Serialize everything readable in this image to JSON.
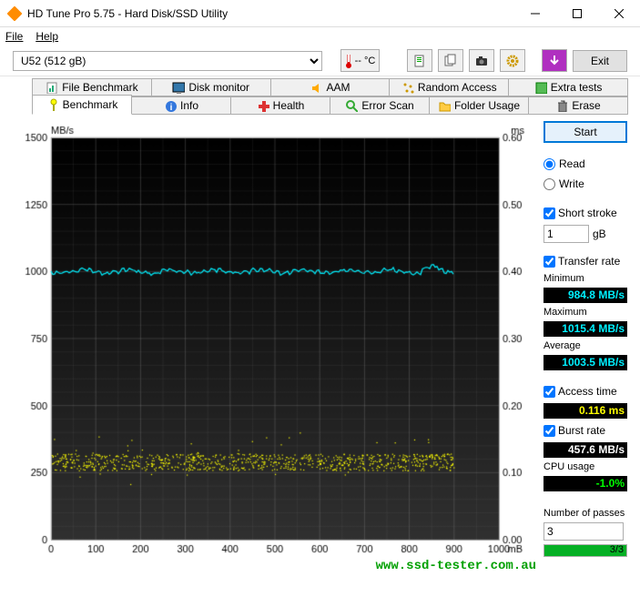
{
  "window": {
    "title": "HD Tune Pro 5.75 - Hard Disk/SSD Utility"
  },
  "menu": {
    "file": "File",
    "help": "Help"
  },
  "toolbar": {
    "device": "U52 (512 gB)",
    "temp_value": "-- °C",
    "exit": "Exit"
  },
  "tabs_top": [
    "File Benchmark",
    "Disk monitor",
    "AAM",
    "Random Access",
    "Extra tests"
  ],
  "tabs_bottom": [
    "Benchmark",
    "Info",
    "Health",
    "Error Scan",
    "Folder Usage",
    "Erase"
  ],
  "active_tab": "Benchmark",
  "chart": {
    "y_label": "MB/s",
    "y2_label": "ms",
    "x_label": "mB",
    "y_ticks": [
      0,
      250,
      500,
      750,
      1000,
      1250,
      1500
    ],
    "y2_ticks": [
      "0.00",
      "0.10",
      "0.20",
      "0.30",
      "0.40",
      "0.50",
      "0.60"
    ],
    "x_ticks": [
      0,
      100,
      200,
      300,
      400,
      500,
      600,
      700,
      800,
      900,
      1000
    ],
    "bg_top": "#000000",
    "bg_bottom": "#303030",
    "grid_color": "#808080",
    "transfer_line_color": "#00f0ff",
    "access_point_color": "#ffff00",
    "transfer_y_approx": 1000,
    "access_y_approx_ms": 0.12,
    "x_max": 1000
  },
  "side": {
    "start": "Start",
    "read": "Read",
    "write": "Write",
    "read_selected": true,
    "short_stroke": "Short stroke",
    "short_stroke_checked": true,
    "short_stroke_val": "1",
    "short_stroke_unit": "gB",
    "transfer_rate": "Transfer rate",
    "transfer_checked": true,
    "minimum": "Minimum",
    "min_val": "984.8 MB/s",
    "maximum": "Maximum",
    "max_val": "1015.4 MB/s",
    "average": "Average",
    "avg_val": "1003.5 MB/s",
    "access_time": "Access time",
    "access_checked": true,
    "access_val": "0.116 ms",
    "burst_rate": "Burst rate",
    "burst_checked": true,
    "burst_val": "457.6 MB/s",
    "cpu_usage": "CPU usage",
    "cpu_val": "-1.0%",
    "num_passes": "Number of passes",
    "passes_val": "3",
    "progress_text": "3/3",
    "progress_pct": 100
  },
  "watermark": "www.ssd-tester.com.au"
}
